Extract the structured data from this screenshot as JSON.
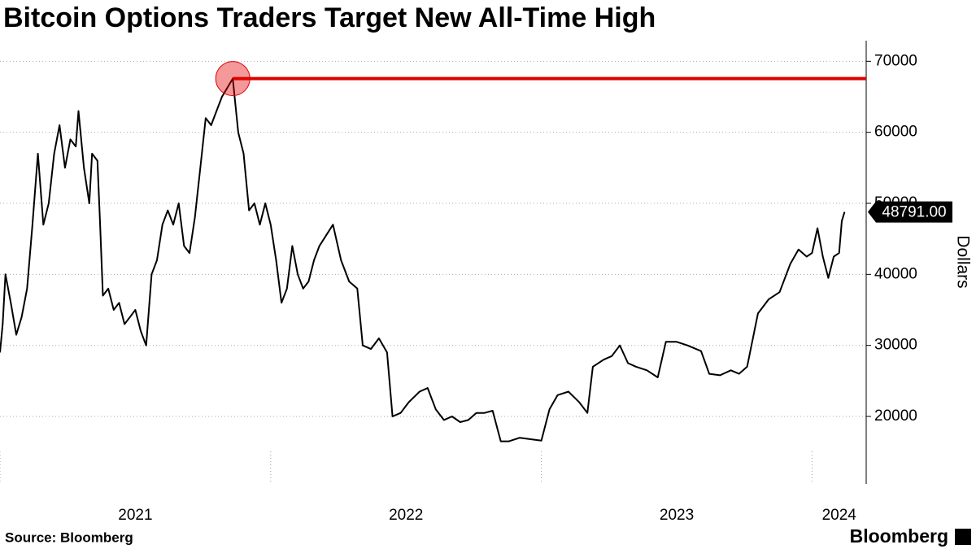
{
  "chart_data": {
    "type": "line",
    "title": "Bitcoin Options Traders Target New All-Time High",
    "source": "Source: Bloomberg",
    "brand": "Bloomberg",
    "y_axis_label": "Dollars",
    "last_value_label": "48791.00",
    "highlight_color": "#e00000",
    "grid": true,
    "series": [
      {
        "name": "Bitcoin",
        "color": "#000000",
        "x": [
          2021.0,
          2021.01,
          2021.02,
          2021.04,
          2021.06,
          2021.08,
          2021.1,
          2021.12,
          2021.14,
          2021.16,
          2021.18,
          2021.2,
          2021.22,
          2021.24,
          2021.26,
          2021.28,
          2021.29,
          2021.31,
          2021.33,
          2021.34,
          2021.36,
          2021.37,
          2021.38,
          2021.4,
          2021.42,
          2021.44,
          2021.46,
          2021.48,
          2021.5,
          2021.52,
          2021.54,
          2021.56,
          2021.58,
          2021.6,
          2021.62,
          2021.64,
          2021.66,
          2021.68,
          2021.7,
          2021.72,
          2021.74,
          2021.76,
          2021.78,
          2021.8,
          2021.82,
          2021.86,
          2021.88,
          2021.9,
          2021.92,
          2021.94,
          2021.96,
          2021.98,
          2022.0,
          2022.02,
          2022.04,
          2022.06,
          2022.08,
          2022.1,
          2022.12,
          2022.14,
          2022.16,
          2022.18,
          2022.23,
          2022.26,
          2022.29,
          2022.32,
          2022.34,
          2022.37,
          2022.4,
          2022.43,
          2022.45,
          2022.48,
          2022.51,
          2022.55,
          2022.58,
          2022.61,
          2022.64,
          2022.67,
          2022.7,
          2022.73,
          2022.76,
          2022.79,
          2022.82,
          2022.85,
          2022.88,
          2022.92,
          2022.96,
          2023.0,
          2023.03,
          2023.06,
          2023.1,
          2023.14,
          2023.17,
          2023.19,
          2023.23,
          2023.26,
          2023.29,
          2023.32,
          2023.35,
          2023.39,
          2023.43,
          2023.46,
          2023.5,
          2023.54,
          2023.59,
          2023.62,
          2023.66,
          2023.7,
          2023.73,
          2023.76,
          2023.8,
          2023.84,
          2023.88,
          2023.92,
          2023.95,
          2023.98,
          2024.0,
          2024.02,
          2024.04,
          2024.06,
          2024.08,
          2024.1,
          2024.11,
          2024.12
        ],
        "values": [
          29000,
          33000,
          40000,
          36000,
          31500,
          34000,
          38000,
          47000,
          57000,
          47000,
          50000,
          57000,
          61000,
          55000,
          59000,
          58000,
          63000,
          55000,
          50000,
          57000,
          56000,
          47000,
          37000,
          38000,
          35000,
          36000,
          33000,
          34000,
          35000,
          32000,
          30000,
          40000,
          42000,
          47000,
          49000,
          47000,
          50000,
          44000,
          43000,
          48000,
          55000,
          62000,
          61000,
          63000,
          65000,
          67567,
          60000,
          57000,
          49000,
          50000,
          47000,
          50000,
          47000,
          42000,
          36000,
          38000,
          44000,
          40000,
          38000,
          39000,
          42000,
          44000,
          47000,
          42000,
          39000,
          38000,
          30000,
          29500,
          31000,
          29000,
          20000,
          20500,
          22000,
          23500,
          24000,
          21000,
          19500,
          20000,
          19200,
          19500,
          20500,
          20500,
          20800,
          16500,
          16500,
          17000,
          16800,
          16600,
          21000,
          23000,
          23500,
          22000,
          20500,
          27000,
          28000,
          28500,
          30000,
          27500,
          27000,
          26500,
          25500,
          30500,
          30500,
          30000,
          29200,
          26000,
          25800,
          26500,
          26000,
          27000,
          34500,
          36500,
          37500,
          41500,
          43500,
          42500,
          43000,
          46500,
          42500,
          39500,
          42500,
          43000,
          47500,
          48791
        ]
      }
    ],
    "xlim": [
      2021.0,
      2024.2
    ],
    "xticks": [
      2021,
      2022,
      2023,
      2024
    ],
    "ylim": [
      10500,
      72900
    ],
    "yticks": [
      20000,
      30000,
      40000,
      50000,
      60000,
      70000
    ]
  }
}
